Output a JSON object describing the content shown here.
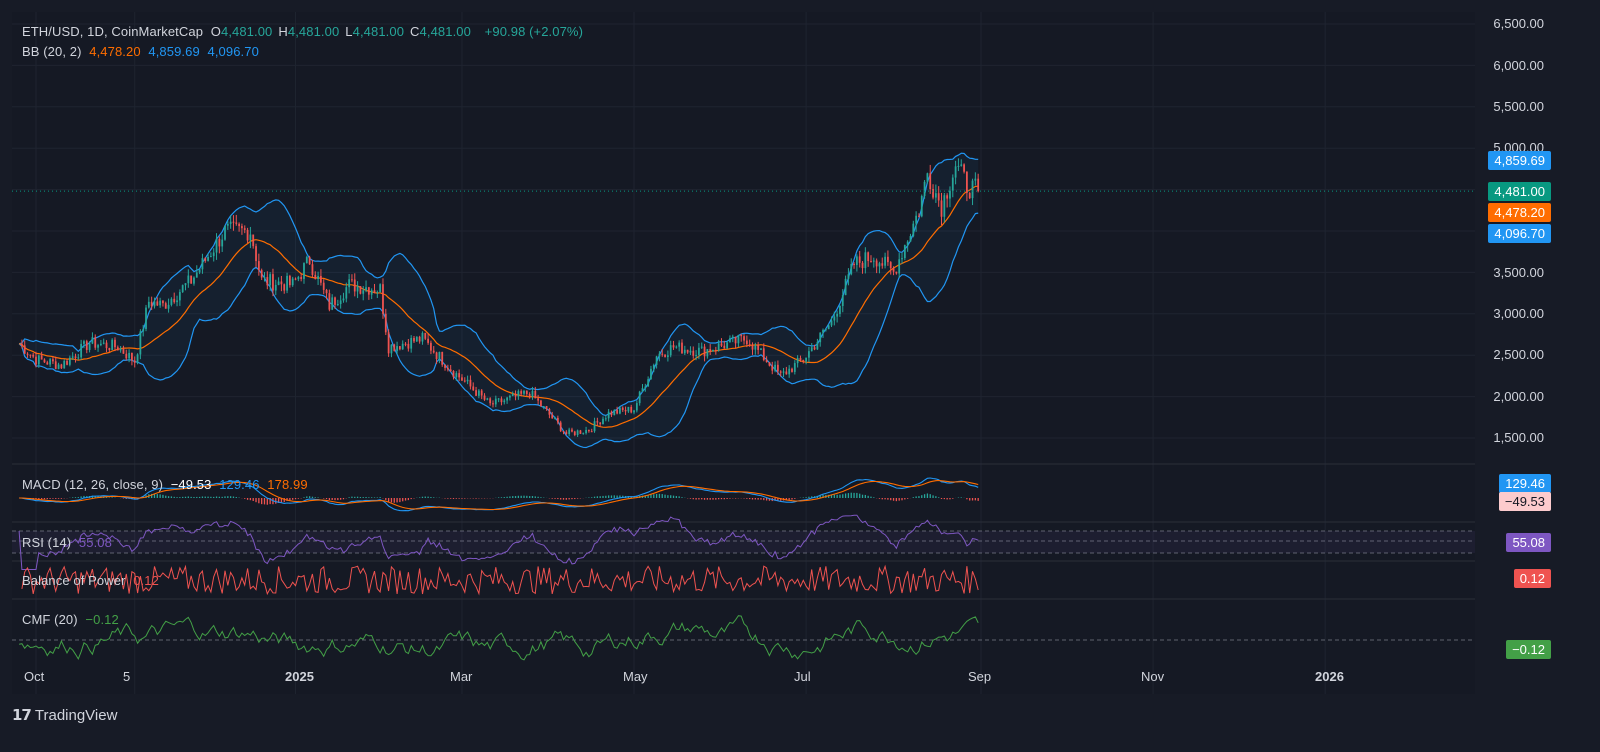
{
  "header": {
    "symbol": "ETH/USD, 1D, CoinMarketCap",
    "ohlc": [
      {
        "key": "O",
        "value": "4,481.00"
      },
      {
        "key": "H",
        "value": "4,481.00"
      },
      {
        "key": "L",
        "value": "4,481.00"
      },
      {
        "key": "C",
        "value": "4,481.00"
      }
    ],
    "change": "+90.98 (+2.07%)",
    "bb_label": "BB (20, 2)",
    "bb_basis": "4,478.20",
    "bb_upper": "4,859.69",
    "bb_lower": "4,096.70"
  },
  "colors": {
    "background": "#151924",
    "grid": "#1f2430",
    "up": "#26a69a",
    "down": "#ef5350",
    "bb_basis": "#ff6d00",
    "bb_band": "#2196f3",
    "rsi": "#7e57c2",
    "bop": "#ef5350",
    "cmf": "#43a047"
  },
  "price_axis": {
    "ticks": [
      "6,500.00",
      "6,000.00",
      "5,500.00",
      "5,000.00",
      "3,500.00",
      "3,000.00",
      "2,500.00",
      "2,000.00",
      "1,500.00"
    ],
    "badges": [
      {
        "value": "4,859.69",
        "color": "#2196f3"
      },
      {
        "value": "4,481.00",
        "color": "#089981"
      },
      {
        "value": "4,478.20",
        "color": "#ff6d00"
      },
      {
        "value": "4,096.70",
        "color": "#2196f3"
      }
    ]
  },
  "time_axis": {
    "labels": [
      {
        "text": "Oct",
        "bold": false
      },
      {
        "text": "5",
        "bold": false
      },
      {
        "text": "2025",
        "bold": true
      },
      {
        "text": "Mar",
        "bold": false
      },
      {
        "text": "May",
        "bold": false
      },
      {
        "text": "Jul",
        "bold": false
      },
      {
        "text": "Sep",
        "bold": false
      },
      {
        "text": "Nov",
        "bold": false
      },
      {
        "text": "2026",
        "bold": true
      }
    ]
  },
  "macd": {
    "label": "MACD (12, 26, close, 9)",
    "hist": "−49.53",
    "macd": "129.46",
    "signal": "178.99",
    "badge_macd": "129.46",
    "badge_hist": "−49.53"
  },
  "rsi": {
    "label": "RSI (14)",
    "value": "55.08",
    "badge": "55.08"
  },
  "bop": {
    "label": "Balance of Power",
    "value": "0.12",
    "badge": "0.12"
  },
  "cmf": {
    "label": "CMF (20)",
    "value": "−0.12",
    "badge": "−0.12"
  },
  "brand": {
    "name": "TradingView"
  },
  "chart_data": {
    "type": "candlestick",
    "title": "ETH/USD, 1D, CoinMarketCap",
    "y_range": [
      1300,
      6650
    ],
    "x_range": [
      "2024-09-25",
      "2026-03-01"
    ],
    "close_path": [
      [
        "2024-09-25",
        2640
      ],
      [
        "2024-10-01",
        2450
      ],
      [
        "2024-10-10",
        2380
      ],
      [
        "2024-10-20",
        2650
      ],
      [
        "2024-10-30",
        2600
      ],
      [
        "2024-11-05",
        2430
      ],
      [
        "2024-11-10",
        3150
      ],
      [
        "2024-11-15",
        3100
      ],
      [
        "2024-11-25",
        3400
      ],
      [
        "2024-12-01",
        3700
      ],
      [
        "2024-12-07",
        4000
      ],
      [
        "2024-12-16",
        4000
      ],
      [
        "2024-12-20",
        3400
      ],
      [
        "2024-12-31",
        3350
      ],
      [
        "2025-01-06",
        3650
      ],
      [
        "2025-01-13",
        3100
      ],
      [
        "2025-01-20",
        3350
      ],
      [
        "2025-01-31",
        3300
      ],
      [
        "2025-02-03",
        2600
      ],
      [
        "2025-02-15",
        2700
      ],
      [
        "2025-02-26",
        2300
      ],
      [
        "2025-03-03",
        2150
      ],
      [
        "2025-03-11",
        1900
      ],
      [
        "2025-03-25",
        2050
      ],
      [
        "2025-04-07",
        1550
      ],
      [
        "2025-04-15",
        1600
      ],
      [
        "2025-04-22",
        1800
      ],
      [
        "2025-05-01",
        1850
      ],
      [
        "2025-05-09",
        2500
      ],
      [
        "2025-05-15",
        2600
      ],
      [
        "2025-05-25",
        2550
      ],
      [
        "2025-06-10",
        2700
      ],
      [
        "2025-06-22",
        2250
      ],
      [
        "2025-06-30",
        2450
      ],
      [
        "2025-07-10",
        2900
      ],
      [
        "2025-07-18",
        3600
      ],
      [
        "2025-07-25",
        3700
      ],
      [
        "2025-08-01",
        3500
      ],
      [
        "2025-08-10",
        4250
      ],
      [
        "2025-08-13",
        4700
      ],
      [
        "2025-08-18",
        4300
      ],
      [
        "2025-08-23",
        4800
      ],
      [
        "2025-08-27",
        4550
      ],
      [
        "2025-08-31",
        4481
      ]
    ],
    "bollinger": {
      "period": 20,
      "mult": 2,
      "basis": 4478.2,
      "upper": 4859.69,
      "lower": 4096.7
    },
    "last": {
      "open": 4481.0,
      "high": 4481.0,
      "low": 4481.0,
      "close": 4481.0,
      "change": 90.98,
      "change_pct": 2.07
    },
    "indicators": {
      "macd": {
        "macd": 129.46,
        "signal": 178.99,
        "histogram": -49.53
      },
      "rsi": 55.08,
      "balance_of_power": 0.12,
      "cmf": -0.12
    }
  }
}
